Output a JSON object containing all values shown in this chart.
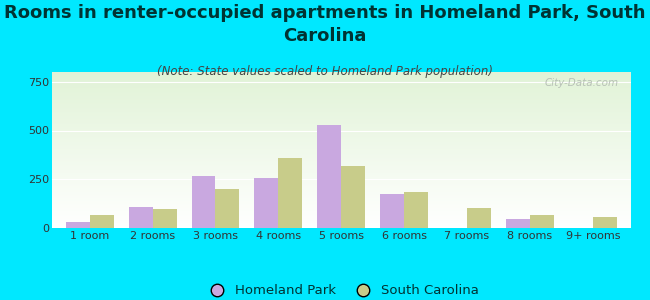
{
  "title": "Rooms in renter-occupied apartments in Homeland Park, South\nCarolina",
  "subtitle": "(Note: State values scaled to Homeland Park population)",
  "categories": [
    "1 room",
    "2 rooms",
    "3 rooms",
    "4 rooms",
    "5 rooms",
    "6 rooms",
    "7 rooms",
    "8 rooms",
    "9+ rooms"
  ],
  "homeland_park": [
    30,
    110,
    265,
    255,
    530,
    175,
    0,
    45,
    0
  ],
  "south_carolina": [
    65,
    95,
    200,
    360,
    320,
    185,
    105,
    65,
    55
  ],
  "hp_color": "#c9a8e0",
  "sc_color": "#c8cc8a",
  "background_color": "#00e8ff",
  "ylim": [
    0,
    800
  ],
  "yticks": [
    0,
    250,
    500,
    750
  ],
  "title_fontsize": 13,
  "subtitle_fontsize": 8.5,
  "tick_fontsize": 8,
  "legend_fontsize": 9.5,
  "watermark_text": "City-Data.com",
  "bar_width": 0.38
}
